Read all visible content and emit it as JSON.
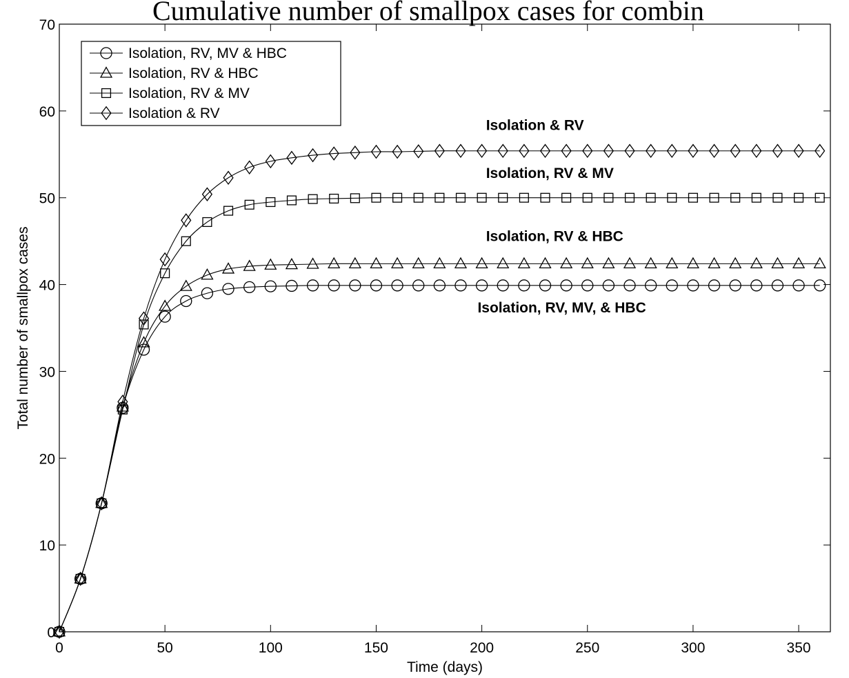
{
  "chart_data": {
    "type": "line",
    "title": "Cumulative number of smallpox cases for combin",
    "xlabel": "Time (days)",
    "ylabel": "Total number of smallpox cases",
    "xlim": [
      0,
      365
    ],
    "ylim": [
      0,
      70
    ],
    "xticks": [
      0,
      50,
      100,
      150,
      200,
      250,
      300,
      350
    ],
    "yticks": [
      0,
      10,
      20,
      30,
      40,
      50,
      60,
      70
    ],
    "grid": false,
    "legend_position": "top-left",
    "x": [
      0,
      10,
      20,
      30,
      40,
      50,
      60,
      70,
      80,
      90,
      100,
      110,
      120,
      130,
      140,
      150,
      160,
      170,
      180,
      190,
      200,
      210,
      220,
      230,
      240,
      250,
      260,
      270,
      280,
      290,
      300,
      310,
      320,
      330,
      340,
      350,
      360
    ],
    "series": [
      {
        "name": "Isolation, RV, MV & HBC",
        "marker": "circle",
        "values": [
          0,
          6.1,
          14.8,
          25.8,
          32.5,
          36.3,
          38.1,
          39.0,
          39.5,
          39.7,
          39.8,
          39.85,
          39.9,
          39.9,
          39.9,
          39.9,
          39.9,
          39.9,
          39.9,
          39.9,
          39.9,
          39.9,
          39.9,
          39.9,
          39.9,
          39.9,
          39.9,
          39.9,
          39.9,
          39.9,
          39.9,
          39.9,
          39.9,
          39.9,
          39.9,
          39.9,
          39.9
        ]
      },
      {
        "name": "Isolation, RV & HBC",
        "marker": "triangle",
        "values": [
          0,
          6.1,
          14.8,
          25.9,
          33.3,
          37.5,
          39.8,
          41.1,
          41.8,
          42.1,
          42.25,
          42.3,
          42.35,
          42.4,
          42.4,
          42.4,
          42.4,
          42.4,
          42.4,
          42.4,
          42.4,
          42.4,
          42.4,
          42.4,
          42.4,
          42.4,
          42.4,
          42.4,
          42.4,
          42.4,
          42.4,
          42.4,
          42.4,
          42.4,
          42.4,
          42.4,
          42.4
        ]
      },
      {
        "name": "Isolation, RV & MV",
        "marker": "square",
        "values": [
          0,
          6.1,
          14.8,
          25.6,
          35.4,
          41.3,
          45.0,
          47.2,
          48.5,
          49.2,
          49.5,
          49.7,
          49.85,
          49.9,
          49.95,
          50.0,
          50.0,
          50.0,
          50.0,
          50.0,
          50.0,
          50.0,
          50.0,
          50.0,
          50.0,
          50.0,
          50.0,
          50.0,
          50.0,
          50.0,
          50.0,
          50.0,
          50.0,
          50.0,
          50.0,
          50.0,
          50.0
        ]
      },
      {
        "name": "Isolation & RV",
        "marker": "diamond",
        "values": [
          0,
          6.1,
          14.8,
          26.5,
          36.1,
          42.9,
          47.4,
          50.4,
          52.3,
          53.5,
          54.2,
          54.6,
          54.9,
          55.1,
          55.2,
          55.3,
          55.3,
          55.35,
          55.4,
          55.4,
          55.4,
          55.4,
          55.4,
          55.4,
          55.4,
          55.4,
          55.4,
          55.4,
          55.4,
          55.4,
          55.4,
          55.4,
          55.4,
          55.4,
          55.4,
          55.4,
          55.4
        ]
      }
    ],
    "annotations": [
      {
        "text": "Isolation & RV",
        "x": 202,
        "y": 57.8
      },
      {
        "text": "Isolation, RV & MV",
        "x": 202,
        "y": 52.3
      },
      {
        "text": "Isolation, RV & HBC",
        "x": 202,
        "y": 45.0
      },
      {
        "text": "Isolation, RV, MV, & HBC",
        "x": 198,
        "y": 36.8
      }
    ]
  }
}
